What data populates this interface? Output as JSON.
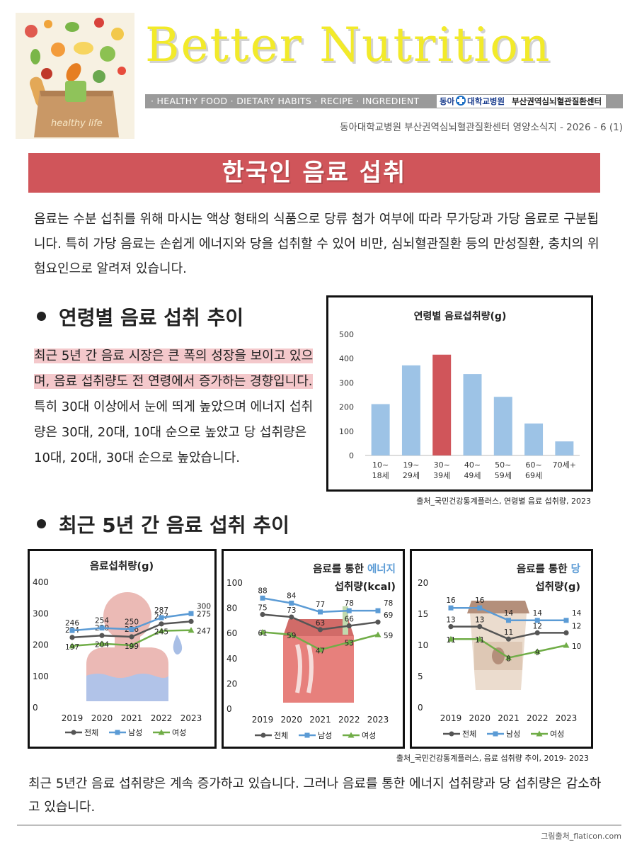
{
  "header": {
    "brand": "Better Nutrition",
    "hero_caption": "healthy life",
    "tags": "· HEALTHY FOOD · DIETARY HABITS · RECIPE · INGREDIENT",
    "logo_org1": "동아",
    "logo_org2": "대학교병원",
    "logo_org3": "부산권역심뇌혈관질환센터",
    "issue": "동아대학교병원 부산권역심뇌혈관질환센터 영양소식지 - 2026 - 6 (1)"
  },
  "title": "한국인 음료 섭취",
  "intro": "음료는 수분 섭취를 위해 마시는 액상 형태의 식품으로 당류 첨가 여부에 따라 무가당과 가당 음료로 구분됩니다. 특히 가당 음료는 손쉽게 에너지와 당을 섭취할 수 있어 비만, 심뇌혈관질환 등의 만성질환, 충치의 위험요인으로 알려져 있습니다.",
  "section1": {
    "heading": "연령별 음료 섭취 추이",
    "highlight": "최근 5년 간 음료 시장은 큰 폭의 성장을 보이고 있으며, 음료 섭취량도 전 연령에서 증가하는 경향입니다.",
    "body": " 특히 30대 이상에서 눈에 띄게 높았으며 에너지 섭취량은 30대, 20대, 10대 순으로 높았고 당 섭취량은 10대, 20대, 30대 순으로 높았습니다.",
    "source": "출처_국민건강통계플러스, 연령별 음료 섭취량, 2023"
  },
  "section2": {
    "heading": "최근 5년 간 음료 섭취 추이",
    "source": "출처_국민건강통계플러스, 음료 섭취량 추이, 2019- 2023"
  },
  "outro": "최근 5년간 음료 섭취량은 계속 증가하고 있습니다. 그러나 음료를 통한 에너지 섭취량과 당 섭취량은 감소하고 있습니다.",
  "credit": "그림출처_flaticon.com",
  "colors": {
    "accent": "#d0555a",
    "bar": "#9dc3e6",
    "bar_highlight": "#d0555a",
    "total": "#555555",
    "male": "#5b9bd5",
    "female": "#70ad47",
    "energy_word": "#5b9bd5",
    "sugar_word": "#5b9bd5"
  },
  "chart_data": [
    {
      "id": "age",
      "type": "bar",
      "title": "연령별 음료섭취량(g)",
      "categories": [
        [
          "10~",
          "18세"
        ],
        [
          "19~",
          "29세"
        ],
        [
          "30~",
          "39세"
        ],
        [
          "40~",
          "49세"
        ],
        [
          "50~",
          "59세"
        ],
        [
          "60~",
          "69세"
        ],
        [
          "70세+"
        ]
      ],
      "values": [
        212,
        372,
        416,
        336,
        242,
        132,
        58
      ],
      "highlight_index": 2,
      "ylim": [
        0,
        500
      ],
      "yticks": [
        0,
        100,
        200,
        300,
        400,
        500
      ],
      "grid": false
    },
    {
      "id": "intake",
      "type": "line",
      "title_lines": [
        "음료섭취량(g)"
      ],
      "x": [
        "2019",
        "2020",
        "2021",
        "2022",
        "2023"
      ],
      "ylim": [
        0,
        400
      ],
      "yticks": [
        0,
        100,
        200,
        300,
        400
      ],
      "series": [
        {
          "name": "전체",
          "key": "total",
          "values": [
            224,
            230,
            226,
            267,
            275
          ]
        },
        {
          "name": "남성",
          "key": "male",
          "values": [
            246,
            254,
            250,
            287,
            300
          ]
        },
        {
          "name": "여성",
          "key": "female",
          "values": [
            197,
            204,
            199,
            245,
            247
          ]
        }
      ],
      "legend": "bottom"
    },
    {
      "id": "energy",
      "type": "line",
      "title_lines": [
        "음료를 통한 에너지",
        "섭취량(kcal)"
      ],
      "title_highlight": "에너지",
      "x": [
        "2019",
        "2020",
        "2021",
        "2022",
        "2023"
      ],
      "ylim": [
        0,
        100
      ],
      "yticks": [
        0,
        20,
        40,
        60,
        80,
        100
      ],
      "series": [
        {
          "name": "전체",
          "key": "total",
          "values": [
            75,
            73,
            63,
            66,
            69
          ]
        },
        {
          "name": "남성",
          "key": "male",
          "values": [
            88,
            84,
            77,
            78,
            78
          ]
        },
        {
          "name": "여성",
          "key": "female",
          "values": [
            61,
            59,
            47,
            53,
            59
          ]
        }
      ],
      "legend": "bottom"
    },
    {
      "id": "sugar",
      "type": "line",
      "title_lines": [
        "음료를 통한 당",
        "섭취량(g)"
      ],
      "title_highlight": "당",
      "x": [
        "2019",
        "2020",
        "2021",
        "2022",
        "2023"
      ],
      "ylim": [
        0,
        20
      ],
      "yticks": [
        0,
        5,
        10,
        15,
        20
      ],
      "series": [
        {
          "name": "전체",
          "key": "total",
          "values": [
            13,
            13,
            11,
            12,
            12
          ]
        },
        {
          "name": "남성",
          "key": "male",
          "values": [
            16,
            16,
            14,
            14,
            14
          ]
        },
        {
          "name": "여성",
          "key": "female",
          "values": [
            11,
            11,
            8,
            9,
            10
          ]
        }
      ],
      "legend": "bottom"
    }
  ]
}
